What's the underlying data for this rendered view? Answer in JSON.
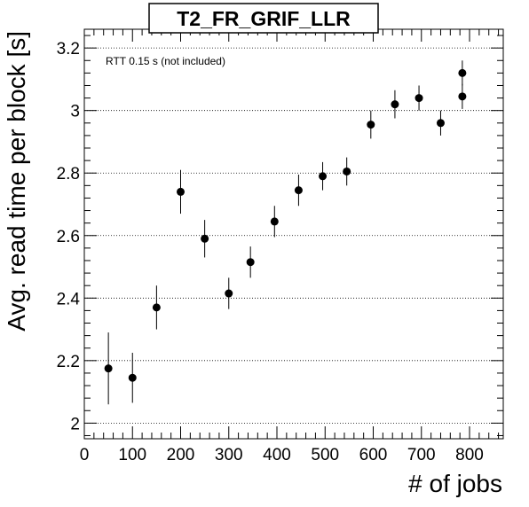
{
  "chart_data": {
    "type": "scatter",
    "title": "T2_FR_GRIF_LLR",
    "annotation": "RTT 0.15 s (not included)",
    "xlabel": "# of jobs",
    "ylabel": "Avg. read time per block [s]",
    "xlim": [
      0,
      870
    ],
    "ylim": [
      1.95,
      3.26
    ],
    "xticks": [
      0,
      100,
      200,
      300,
      400,
      500,
      600,
      700,
      800
    ],
    "yticks": [
      2,
      2.2,
      2.4,
      2.6,
      2.8,
      3,
      3.2
    ],
    "ytick_labels": [
      "2",
      "2.2",
      "2.4",
      "2.6",
      "2.8",
      "3",
      "3.2"
    ],
    "grid": "horizontal dotted",
    "points": [
      {
        "x": 50,
        "y": 2.175,
        "err": 0.115
      },
      {
        "x": 100,
        "y": 2.145,
        "err": 0.08
      },
      {
        "x": 150,
        "y": 2.37,
        "err": 0.07
      },
      {
        "x": 200,
        "y": 2.74,
        "err": 0.07
      },
      {
        "x": 250,
        "y": 2.59,
        "err": 0.06
      },
      {
        "x": 300,
        "y": 2.415,
        "err": 0.05
      },
      {
        "x": 345,
        "y": 2.515,
        "err": 0.05
      },
      {
        "x": 395,
        "y": 2.645,
        "err": 0.05
      },
      {
        "x": 445,
        "y": 2.745,
        "err": 0.05
      },
      {
        "x": 495,
        "y": 2.79,
        "err": 0.045
      },
      {
        "x": 545,
        "y": 2.805,
        "err": 0.045
      },
      {
        "x": 595,
        "y": 2.955,
        "err": 0.045
      },
      {
        "x": 645,
        "y": 3.02,
        "err": 0.045
      },
      {
        "x": 695,
        "y": 3.04,
        "err": 0.04
      },
      {
        "x": 740,
        "y": 2.96,
        "err": 0.04
      },
      {
        "x": 785,
        "y": 3.12,
        "err": 0.04
      },
      {
        "x": 785,
        "y": 3.045,
        "err": 0.04
      }
    ]
  }
}
